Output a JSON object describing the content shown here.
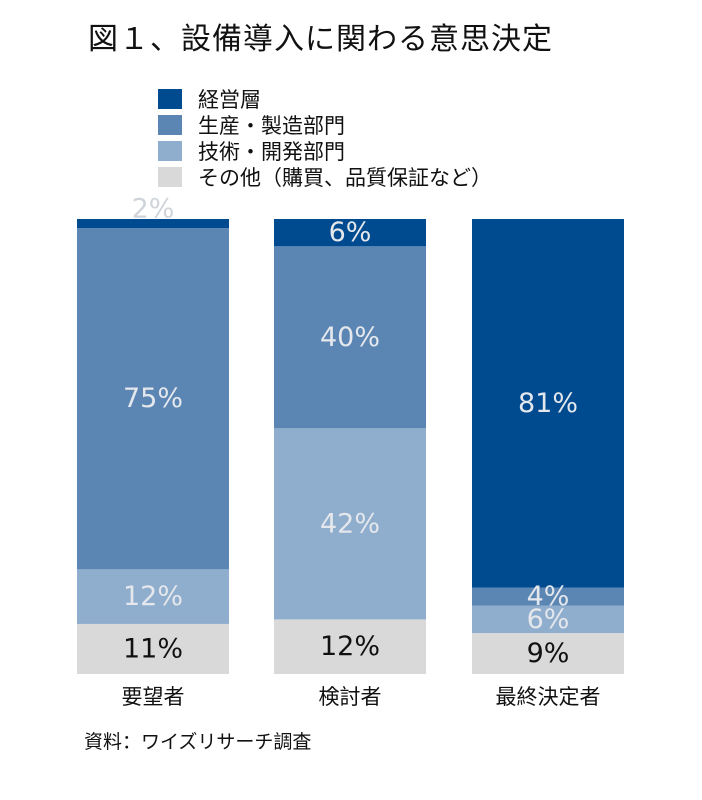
{
  "colors": {
    "management": "#004a8f",
    "production": "#5b86b4",
    "engineering": "#8fadcc",
    "other": "#d9d9d9",
    "label_dark": "#111111",
    "label_light": "#e4e7ec"
  },
  "chart_data": {
    "type": "bar",
    "stacked": true,
    "orientation": "vertical",
    "title": "図１、設備導入に関わる意思決定",
    "categories": [
      "要望者",
      "検討者",
      "最終決定者"
    ],
    "series": [
      {
        "name": "その他（購買、品質保証など）",
        "values": [
          11,
          12,
          9
        ]
      },
      {
        "name": "技術・開発部門",
        "values": [
          12,
          42,
          6
        ]
      },
      {
        "name": "生産・製造部門",
        "values": [
          75,
          40,
          4
        ]
      },
      {
        "name": "経営層",
        "values": [
          2,
          6,
          81
        ]
      }
    ],
    "data_labels": [
      [
        "11%",
        "12%",
        "9%"
      ],
      [
        "12%",
        "42%",
        "6%"
      ],
      [
        "75%",
        "40%",
        "4%"
      ],
      [
        "2%",
        "6%",
        "81%"
      ]
    ],
    "ylim": [
      0,
      100
    ],
    "grid": false,
    "legend_position": "top"
  },
  "source": "資料：ワイズリサーチ調査"
}
